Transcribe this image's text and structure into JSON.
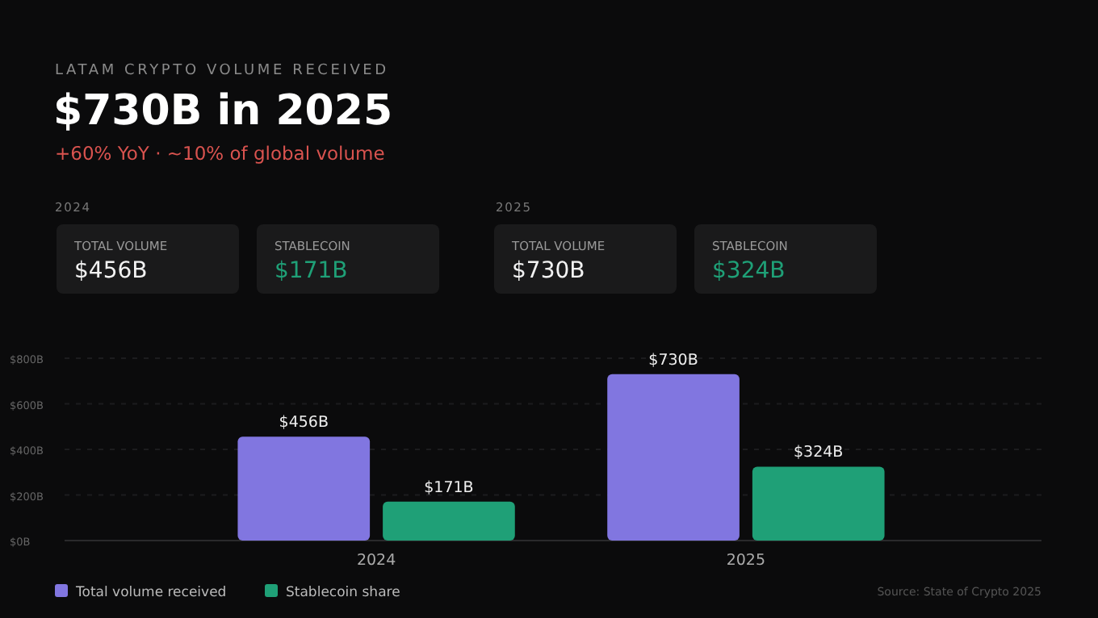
{
  "chart_data": {
    "type": "bar",
    "title": "$730B in 2025",
    "subtitle": "+60% YoY · ~10% of global volume",
    "annotations": [
      "LATAM CRYPTO VOLUME RECEIVED",
      "2024",
      "TOTAL VOLUME",
      "$456B",
      "STABLECOIN",
      "$171B",
      "2025",
      "TOTAL VOLUME",
      "$730B",
      "STABLECOIN",
      "$324B",
      "Source: State of Crypto 2025"
    ],
    "categories": [
      "2024",
      "2025"
    ],
    "series": [
      {
        "name": "Total volume received",
        "color": "#8176e0",
        "values": [
          456,
          730
        ],
        "value_labels": [
          "$456B",
          "$730B"
        ]
      },
      {
        "name": "Stablecoin share",
        "color": "#1fa077",
        "values": [
          171,
          324
        ],
        "value_labels": [
          "$171B",
          "$324B"
        ]
      }
    ],
    "ylim": [
      0,
      800
    ],
    "yticks": [
      {
        "value": 0,
        "label": "$0B"
      },
      {
        "value": 200,
        "label": "$200B"
      },
      {
        "value": 400,
        "label": "$400B"
      },
      {
        "value": 600,
        "label": "$600B"
      },
      {
        "value": 800,
        "label": "$800B"
      }
    ],
    "grid": "y",
    "legend": "bottom left"
  }
}
